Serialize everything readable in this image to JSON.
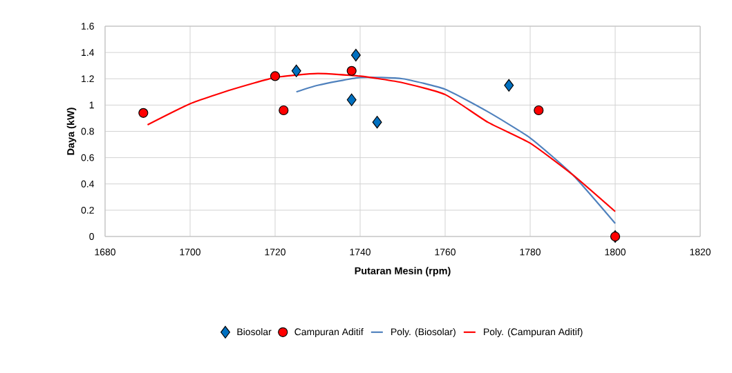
{
  "chart_data": {
    "type": "scatter",
    "xlabel": "Putaran Mesin (rpm)",
    "ylabel": "Daya (kW)",
    "xlim": [
      1680,
      1820
    ],
    "xticks": [
      1680,
      1700,
      1720,
      1740,
      1760,
      1780,
      1800,
      1820
    ],
    "ylim": [
      0,
      1.6
    ],
    "yticks": [
      0,
      {
        "value": 0.2,
        "label": "0.2"
      },
      {
        "value": 0.4,
        "label": "0.4"
      },
      {
        "value": 0.6,
        "label": "0.6"
      },
      {
        "value": 0.8,
        "label": "0.8"
      },
      1,
      {
        "value": 1.2,
        "label": "1.2"
      },
      {
        "value": 1.4,
        "label": "1.4"
      },
      {
        "value": 1.6,
        "label": "1.6"
      }
    ],
    "grid": true,
    "legend": "bottom",
    "series": [
      {
        "name": "Biosolar",
        "marker": "diamond",
        "color": "#0070c0",
        "x": [
          1725,
          1739,
          1738,
          1744,
          1775,
          1800
        ],
        "values": [
          1.26,
          1.38,
          1.04,
          0.87,
          1.15,
          0
        ]
      },
      {
        "name": "Campuran Aditif",
        "marker": "circle",
        "color": "#ff0000",
        "x": [
          1689,
          1720,
          1722,
          1738,
          1782,
          1800
        ],
        "values": [
          0.94,
          1.22,
          0.96,
          1.26,
          0.96,
          0
        ]
      },
      {
        "name": "Poly. (Biosolar)",
        "type": "line",
        "marker": "none",
        "line_style": "solid",
        "color": "#4f81bd",
        "x": [
          1725,
          1730,
          1740,
          1750,
          1760,
          1770,
          1780,
          1790,
          1800
        ],
        "values": [
          1.1,
          1.15,
          1.21,
          1.2,
          1.12,
          0.95,
          0.75,
          0.47,
          0.1
        ]
      },
      {
        "name": "Poly. (Campuran Aditif)",
        "type": "line",
        "marker": "none",
        "line_style": "solid",
        "color": "#ff0000",
        "x": [
          1690,
          1700,
          1710,
          1720,
          1730,
          1740,
          1750,
          1760,
          1770,
          1780,
          1790,
          1800
        ],
        "values": [
          0.85,
          1.01,
          1.12,
          1.21,
          1.24,
          1.22,
          1.17,
          1.08,
          0.87,
          0.71,
          0.47,
          0.19
        ]
      }
    ]
  }
}
